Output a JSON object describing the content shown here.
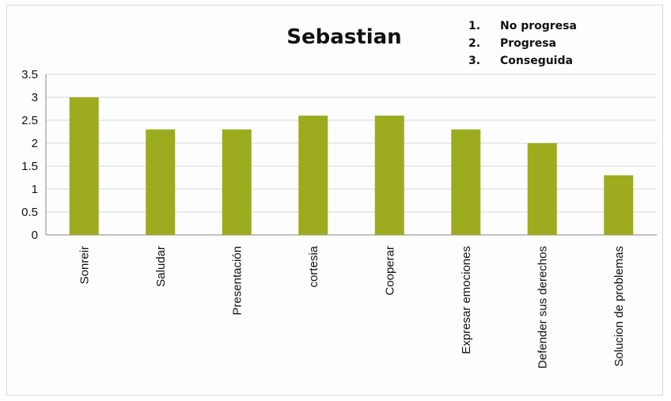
{
  "chart_data": {
    "type": "bar",
    "title": "Sebastian",
    "categories": [
      "Sonreir",
      "Saludar",
      "Presentación",
      "cortesia",
      "Cooperar",
      "Expresar emociones",
      "Defender sus derechos",
      "Solucion de problemas"
    ],
    "values": [
      3.0,
      2.3,
      2.3,
      2.6,
      2.6,
      2.3,
      2.0,
      1.3
    ],
    "ylim": [
      0,
      3.5
    ],
    "yticks": [
      0,
      0.5,
      1,
      1.5,
      2,
      2.5,
      3,
      3.5
    ],
    "ytick_labels": [
      "0",
      "0.5",
      "1",
      "1.5",
      "2",
      "2.5",
      "3",
      "3.5"
    ],
    "grid": true,
    "bar_color": "#9dab1e",
    "grid_color": "#d9d9d9",
    "legend_placement": "top-right",
    "legend": [
      {
        "num": "1.",
        "label": "No progresa"
      },
      {
        "num": "2.",
        "label": "Progresa"
      },
      {
        "num": "3.",
        "label": "Conseguida"
      }
    ]
  }
}
